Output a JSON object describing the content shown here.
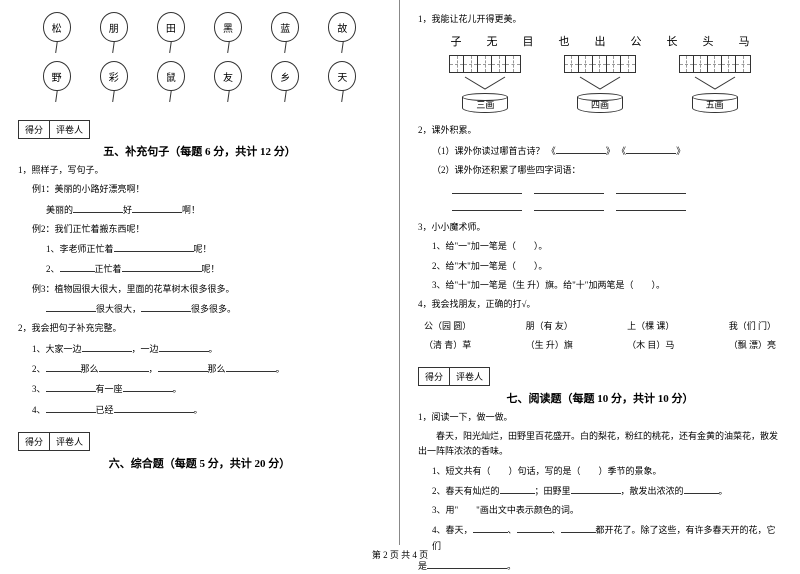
{
  "balloons_row1": [
    "松",
    "朋",
    "田",
    "黑",
    "蓝",
    "故"
  ],
  "balloons_row2": [
    "野",
    "彩",
    "鼠",
    "友",
    "乡",
    "天"
  ],
  "score_labels": {
    "score": "得分",
    "reviewer": "评卷人"
  },
  "sections": {
    "s5": {
      "title": "五、补充句子（每题 6 分，共计 12 分）"
    },
    "s6": {
      "title": "六、综合题（每题 5 分，共计 20 分）"
    },
    "s7": {
      "title": "七、阅读题（每题 10 分，共计 10 分）"
    }
  },
  "q5_1": {
    "stem": "1，照样子，写句子。",
    "ex1": "例1：美丽的小路好漂亮啊！",
    "line1a": "美丽的",
    "line1b": "好",
    "line1c": "啊！",
    "ex2": "例2：我们正忙着搬东西呢！",
    "line2a": "1、李老师正忙着",
    "line2b": "呢！",
    "line2c": "2、",
    "line2d": "正忙着",
    "line2e": "呢！",
    "ex3": "例3：植物园很大很大，里面的花草树木很多很多。",
    "line3a": "很大很大，",
    "line3b": "很多很多。"
  },
  "q5_2": {
    "stem": "2，我会把句子补充完整。",
    "l1a": "1、大家一边",
    "l1b": "，一边",
    "l1c": "。",
    "l2a": "2、",
    "l2b": "那么",
    "l2c": "，",
    "l2d": "那么",
    "l2e": "。",
    "l3a": "3、",
    "l3b": "有一座",
    "l3c": "。",
    "l4a": "4、",
    "l4b": "已经",
    "l4c": "。"
  },
  "chars": [
    "子",
    "无",
    "目",
    "也",
    "出",
    "公",
    "长",
    "头",
    "马"
  ],
  "cylinders": [
    "三画",
    "四画",
    "五画"
  ],
  "q6_1": {
    "stem": "1，我能让花儿开得更美。"
  },
  "q6_2": {
    "stem": "2，课外积累。",
    "a": "（1）课外你读过哪首古诗？",
    "book_l": "《",
    "book_r": "》",
    "b": "（2）课外你还积累了哪些四字词语："
  },
  "q6_3": {
    "stem": "3，小小魔术师。",
    "l1": "1、给\"一\"加一笔是（　　）。",
    "l2": "2、给\"木\"加一笔是（　　）。",
    "l3a": "3、给\"十\"加一笔是（生  升）旗",
    "l3b": "。给\"十\"加两笔是（　　）。"
  },
  "q6_4": {
    "stem": "4，我会找朋友，正确的打√。",
    "row1": [
      "公（园  圆）",
      "朋（有  友）",
      "上（棵  课）",
      "我（们  门）"
    ],
    "row2": [
      "（清 青）草",
      "（生  升）旗",
      "（木  目）马",
      "（飘  漂）亮"
    ]
  },
  "q7_1": {
    "stem": "1，阅读一下，做一做。",
    "para": "　　春天，阳光灿烂，田野里百花盛开。白的梨花，粉红的桃花，还有金黄的油菜花，散发出一阵阵浓浓的香味。",
    "q1": "1、短文共有（　　）句话，写的是（　　）季节的景象。",
    "q2a": "2、春天有灿烂的",
    "q2b": "；田野里",
    "q2c": "，散发出浓浓的",
    "q2d": "。",
    "q3": "3、用\"　　\"画出文中表示颜色的词。",
    "q4a": "4、春天，",
    "q4b": "、",
    "q4c": "、",
    "q4d": "都开花了。除了这些，有许多春天开的花，它们",
    "q4e": "是",
    "q4f": "。"
  },
  "footer": "第 2 页  共 4 页"
}
